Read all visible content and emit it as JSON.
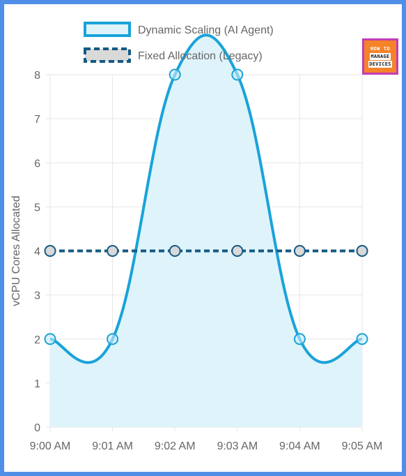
{
  "colors": {
    "frame_border": "#4f8fe8",
    "dynamic_line": "#1aa3d9",
    "dynamic_fill": "#dff3fb",
    "fixed_line": "#145a85",
    "fixed_marker_fill": "#d9d9d9",
    "grid": "#e6e6e6",
    "text": "#666666",
    "logo_bg": "#f5832a",
    "logo_border": "#c33cb5"
  },
  "logo": {
    "line1": "HOW TO",
    "line2": "MANAGE",
    "line3": "DEVICES"
  },
  "chart_data": {
    "type": "line",
    "categories": [
      "9:00 AM",
      "9:01 AM",
      "9:02 AM",
      "9:03 AM",
      "9:04 AM",
      "9:05 AM"
    ],
    "series": [
      {
        "name": "Dynamic Scaling (AI Agent)",
        "values": [
          2,
          2,
          8,
          8,
          2,
          2
        ],
        "style": "solid",
        "fill": true,
        "smooth": true
      },
      {
        "name": "Fixed Allocation (Legacy)",
        "values": [
          4,
          4,
          4,
          4,
          4,
          4
        ],
        "style": "dashed",
        "fill": false,
        "smooth": false
      }
    ],
    "ylabel": "vCPU Cores Allocated",
    "xlabel": "",
    "ylim": [
      0,
      8
    ],
    "yticks": [
      0,
      1,
      2,
      3,
      4,
      5,
      6,
      7,
      8
    ],
    "grid": true,
    "legend_position": "top"
  }
}
